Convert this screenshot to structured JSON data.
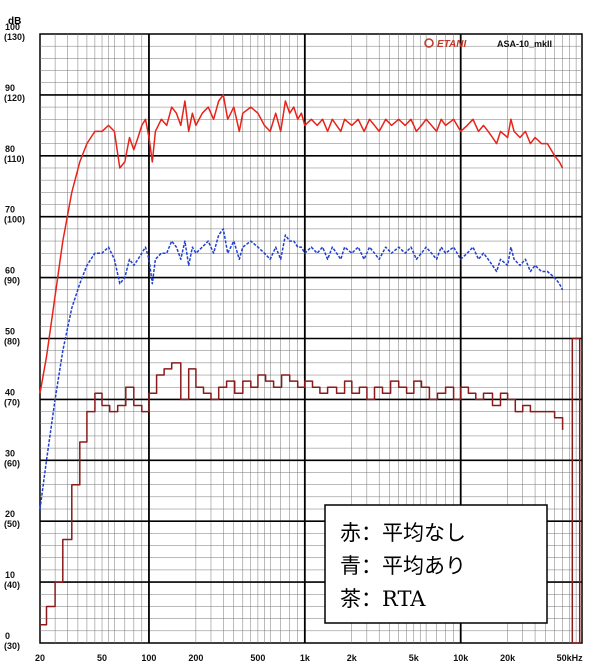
{
  "chart_data": {
    "type": "line",
    "title": "",
    "unit_label": "dB",
    "brand": "ETANI",
    "model": "ASA-10_mkII",
    "xlabel": "",
    "ylabel": "",
    "x_scale": "log",
    "xlim": [
      20,
      60000
    ],
    "ylim": [
      0,
      100
    ],
    "grid": true,
    "x_ticks": [
      {
        "value": 20,
        "label": "20"
      },
      {
        "value": 50,
        "label": "50"
      },
      {
        "value": 100,
        "label": "100"
      },
      {
        "value": 200,
        "label": "200"
      },
      {
        "value": 500,
        "label": "500"
      },
      {
        "value": 1000,
        "label": "1k"
      },
      {
        "value": 2000,
        "label": "2k"
      },
      {
        "value": 5000,
        "label": "5k"
      },
      {
        "value": 10000,
        "label": "10k"
      },
      {
        "value": 20000,
        "label": "20k"
      },
      {
        "value": 50000,
        "label": "50kHz"
      }
    ],
    "y_ticks": [
      {
        "value": 100,
        "label": "100",
        "alt": "(130)"
      },
      {
        "value": 90,
        "label": "90",
        "alt": "(120)"
      },
      {
        "value": 80,
        "label": "80",
        "alt": "(110)"
      },
      {
        "value": 70,
        "label": "70",
        "alt": "(100)"
      },
      {
        "value": 60,
        "label": "60",
        "alt": "(90)"
      },
      {
        "value": 50,
        "label": "50",
        "alt": "(80)"
      },
      {
        "value": 40,
        "label": "40",
        "alt": "(70)"
      },
      {
        "value": 30,
        "label": "30",
        "alt": "(60)"
      },
      {
        "value": 20,
        "label": "20",
        "alt": "(50)"
      },
      {
        "value": 10,
        "label": "10",
        "alt": "(40)"
      },
      {
        "value": 0,
        "label": "0",
        "alt": "(30)"
      }
    ],
    "legend": [
      {
        "text": "赤：平均なし",
        "color": "#e8231a"
      },
      {
        "text": "青：平均あり",
        "color": "#1f3fd1"
      },
      {
        "text": "茶：RTA",
        "color": "#8b1a1a"
      }
    ],
    "series": [
      {
        "color": "#e8231a",
        "style": "solid",
        "points": [
          [
            20,
            41
          ],
          [
            22,
            47
          ],
          [
            25,
            57
          ],
          [
            28,
            66
          ],
          [
            32,
            74
          ],
          [
            36,
            79
          ],
          [
            40,
            82
          ],
          [
            45,
            84
          ],
          [
            50,
            84
          ],
          [
            55,
            85
          ],
          [
            60,
            84
          ],
          [
            65,
            78
          ],
          [
            70,
            79
          ],
          [
            75,
            83
          ],
          [
            80,
            81
          ],
          [
            85,
            83
          ],
          [
            90,
            85
          ],
          [
            95,
            86
          ],
          [
            100,
            83
          ],
          [
            105,
            79
          ],
          [
            110,
            84
          ],
          [
            120,
            86
          ],
          [
            130,
            85
          ],
          [
            140,
            88
          ],
          [
            150,
            87
          ],
          [
            160,
            85
          ],
          [
            170,
            89
          ],
          [
            180,
            84
          ],
          [
            190,
            87
          ],
          [
            200,
            85
          ],
          [
            220,
            87
          ],
          [
            240,
            88
          ],
          [
            260,
            86
          ],
          [
            280,
            89
          ],
          [
            300,
            90
          ],
          [
            320,
            86
          ],
          [
            350,
            88
          ],
          [
            380,
            84
          ],
          [
            400,
            87
          ],
          [
            450,
            88
          ],
          [
            500,
            87
          ],
          [
            550,
            85
          ],
          [
            600,
            84
          ],
          [
            650,
            87
          ],
          [
            700,
            84
          ],
          [
            750,
            89
          ],
          [
            800,
            87
          ],
          [
            850,
            88
          ],
          [
            900,
            86
          ],
          [
            950,
            87
          ],
          [
            1000,
            85
          ],
          [
            1100,
            86
          ],
          [
            1200,
            85
          ],
          [
            1300,
            86
          ],
          [
            1400,
            84
          ],
          [
            1500,
            86
          ],
          [
            1600,
            85
          ],
          [
            1700,
            84
          ],
          [
            1800,
            86
          ],
          [
            2000,
            85
          ],
          [
            2200,
            86
          ],
          [
            2400,
            84
          ],
          [
            2600,
            86
          ],
          [
            2800,
            85
          ],
          [
            3000,
            84
          ],
          [
            3300,
            86
          ],
          [
            3600,
            85
          ],
          [
            4000,
            86
          ],
          [
            4400,
            85
          ],
          [
            4800,
            86
          ],
          [
            5200,
            84
          ],
          [
            5600,
            85
          ],
          [
            6000,
            86
          ],
          [
            6500,
            85
          ],
          [
            7000,
            84
          ],
          [
            7500,
            86
          ],
          [
            8000,
            85
          ],
          [
            9000,
            86
          ],
          [
            10000,
            84
          ],
          [
            11000,
            85
          ],
          [
            12000,
            86
          ],
          [
            13000,
            84
          ],
          [
            14000,
            85
          ],
          [
            15000,
            84
          ],
          [
            16000,
            83
          ],
          [
            17000,
            82
          ],
          [
            18000,
            84
          ],
          [
            20000,
            83
          ],
          [
            21000,
            86
          ],
          [
            22000,
            84
          ],
          [
            24000,
            83
          ],
          [
            26000,
            84
          ],
          [
            28000,
            82
          ],
          [
            30000,
            83
          ],
          [
            33000,
            82
          ],
          [
            36000,
            82
          ],
          [
            40000,
            80
          ],
          [
            43000,
            79
          ],
          [
            45000,
            78
          ]
        ]
      },
      {
        "color": "#1f3fd1",
        "style": "dashed",
        "points": [
          [
            20,
            22
          ],
          [
            22,
            30
          ],
          [
            25,
            40
          ],
          [
            28,
            48
          ],
          [
            32,
            55
          ],
          [
            36,
            59
          ],
          [
            40,
            62
          ],
          [
            45,
            64
          ],
          [
            50,
            64
          ],
          [
            55,
            65
          ],
          [
            60,
            63
          ],
          [
            65,
            59
          ],
          [
            70,
            60
          ],
          [
            75,
            63
          ],
          [
            80,
            62
          ],
          [
            85,
            63
          ],
          [
            90,
            64
          ],
          [
            95,
            65
          ],
          [
            100,
            63
          ],
          [
            105,
            59
          ],
          [
            110,
            63
          ],
          [
            120,
            64
          ],
          [
            130,
            64
          ],
          [
            140,
            66
          ],
          [
            150,
            65
          ],
          [
            160,
            63
          ],
          [
            170,
            66
          ],
          [
            180,
            62
          ],
          [
            190,
            65
          ],
          [
            200,
            64
          ],
          [
            220,
            65
          ],
          [
            240,
            66
          ],
          [
            260,
            64
          ],
          [
            280,
            67
          ],
          [
            300,
            68
          ],
          [
            320,
            64
          ],
          [
            350,
            66
          ],
          [
            380,
            63
          ],
          [
            400,
            65
          ],
          [
            450,
            66
          ],
          [
            500,
            65
          ],
          [
            550,
            64
          ],
          [
            600,
            63
          ],
          [
            650,
            65
          ],
          [
            700,
            63
          ],
          [
            750,
            67
          ],
          [
            800,
            66
          ],
          [
            850,
            66
          ],
          [
            900,
            65
          ],
          [
            950,
            65
          ],
          [
            1000,
            64
          ],
          [
            1100,
            65
          ],
          [
            1200,
            64
          ],
          [
            1300,
            65
          ],
          [
            1400,
            63
          ],
          [
            1500,
            65
          ],
          [
            1600,
            64
          ],
          [
            1700,
            63
          ],
          [
            1800,
            65
          ],
          [
            2000,
            64
          ],
          [
            2200,
            65
          ],
          [
            2400,
            63
          ],
          [
            2600,
            65
          ],
          [
            2800,
            64
          ],
          [
            3000,
            63
          ],
          [
            3300,
            65
          ],
          [
            3600,
            64
          ],
          [
            4000,
            65
          ],
          [
            4400,
            64
          ],
          [
            4800,
            65
          ],
          [
            5200,
            63
          ],
          [
            5600,
            64
          ],
          [
            6000,
            65
          ],
          [
            6500,
            64
          ],
          [
            7000,
            63
          ],
          [
            7500,
            65
          ],
          [
            8000,
            64
          ],
          [
            9000,
            65
          ],
          [
            10000,
            63
          ],
          [
            11000,
            64
          ],
          [
            12000,
            65
          ],
          [
            13000,
            63
          ],
          [
            14000,
            64
          ],
          [
            15000,
            63
          ],
          [
            16000,
            62
          ],
          [
            17000,
            61
          ],
          [
            18000,
            63
          ],
          [
            20000,
            62
          ],
          [
            21000,
            65
          ],
          [
            22000,
            63
          ],
          [
            24000,
            62
          ],
          [
            26000,
            63
          ],
          [
            28000,
            61
          ],
          [
            30000,
            62
          ],
          [
            33000,
            61
          ],
          [
            36000,
            61
          ],
          [
            40000,
            60
          ],
          [
            43000,
            59
          ],
          [
            45000,
            58
          ]
        ]
      },
      {
        "color": "#8b1a1a",
        "style": "step",
        "points": [
          [
            20,
            3
          ],
          [
            22,
            6
          ],
          [
            25,
            10
          ],
          [
            28,
            17
          ],
          [
            32,
            26
          ],
          [
            36,
            33
          ],
          [
            40,
            38
          ],
          [
            45,
            41
          ],
          [
            50,
            39
          ],
          [
            56,
            38
          ],
          [
            63,
            39
          ],
          [
            71,
            42
          ],
          [
            80,
            39
          ],
          [
            90,
            38
          ],
          [
            100,
            41
          ],
          [
            112,
            44
          ],
          [
            125,
            45
          ],
          [
            140,
            46
          ],
          [
            160,
            40
          ],
          [
            180,
            45
          ],
          [
            200,
            42
          ],
          [
            224,
            41
          ],
          [
            250,
            40
          ],
          [
            280,
            42
          ],
          [
            315,
            43
          ],
          [
            355,
            41
          ],
          [
            400,
            43
          ],
          [
            450,
            42
          ],
          [
            500,
            44
          ],
          [
            560,
            43
          ],
          [
            630,
            42
          ],
          [
            710,
            44
          ],
          [
            800,
            43
          ],
          [
            900,
            42
          ],
          [
            1000,
            43
          ],
          [
            1120,
            42
          ],
          [
            1250,
            41
          ],
          [
            1400,
            42
          ],
          [
            1600,
            41
          ],
          [
            1800,
            43
          ],
          [
            2000,
            41
          ],
          [
            2240,
            42
          ],
          [
            2500,
            40
          ],
          [
            2800,
            42
          ],
          [
            3150,
            41
          ],
          [
            3550,
            43
          ],
          [
            4000,
            42
          ],
          [
            4500,
            41
          ],
          [
            5000,
            43
          ],
          [
            5600,
            42
          ],
          [
            6300,
            40
          ],
          [
            7100,
            41
          ],
          [
            8000,
            42
          ],
          [
            9000,
            40
          ],
          [
            10000,
            42
          ],
          [
            11200,
            41
          ],
          [
            12500,
            40
          ],
          [
            14000,
            41
          ],
          [
            16000,
            39
          ],
          [
            18000,
            41
          ],
          [
            20000,
            40
          ],
          [
            22400,
            38
          ],
          [
            25000,
            39
          ],
          [
            28000,
            38
          ],
          [
            31500,
            38
          ],
          [
            35500,
            38
          ],
          [
            40000,
            37
          ]
        ]
      }
    ],
    "rta_edge": {
      "from": 52000,
      "to": 58000,
      "value": 50,
      "color": "#8b1a1a"
    }
  }
}
